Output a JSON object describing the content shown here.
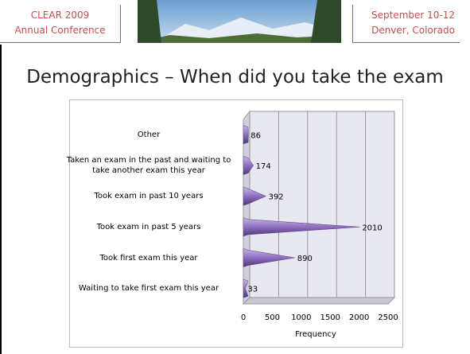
{
  "header": {
    "left": [
      "CLEAR 2009",
      "Annual Conference"
    ],
    "right": [
      "September 10-12",
      "Denver, Colorado"
    ]
  },
  "chart_data": {
    "type": "bar",
    "orientation": "horizontal",
    "title": "Demographics – When did you take the exam",
    "categories": [
      "Other",
      "Taken an exam in the past and waiting to take another exam this year",
      "Took exam in past 10 years",
      "Took exam in past 5 years",
      "Took first exam this year",
      "Waiting to take first exam this year"
    ],
    "values": [
      86,
      174,
      392,
      2010,
      890,
      33
    ],
    "color": "#8e6fc0",
    "xlim": [
      0,
      2500
    ],
    "xticks": [
      0,
      500,
      1000,
      1500,
      2000,
      2500
    ],
    "xlabel": "Frequency",
    "grid": true
  }
}
